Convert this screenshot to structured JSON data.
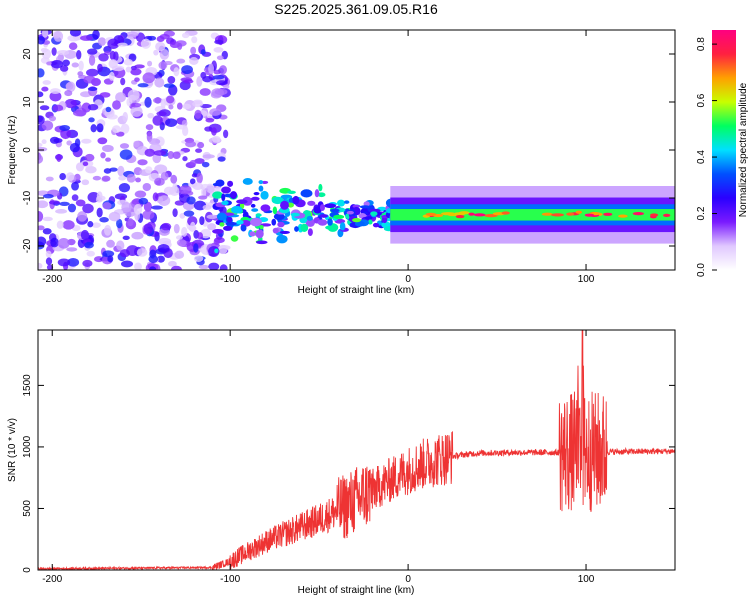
{
  "figure_title": "S225.2025.361.09.05.R16",
  "chart_data": [
    {
      "type": "heatmap",
      "title": "S225.2025.361.09.05.R16",
      "xlabel": "Height of straight line (km)",
      "ylabel": "Frequency (Hz)",
      "xlim": [
        -208,
        150
      ],
      "ylim": [
        -25,
        25
      ],
      "xticks": [
        -200,
        -100,
        0,
        100
      ],
      "yticks": [
        -20,
        -10,
        0,
        10,
        20
      ],
      "colorbar": {
        "label": "Normalized spectral amplitude",
        "range": [
          0,
          0.85
        ],
        "ticks": [
          0.0,
          0.2,
          0.4,
          0.6,
          0.8
        ],
        "colormap": [
          "#ffffff",
          "#e0c8ff",
          "#7a1aff",
          "#2a00ff",
          "#0050ff",
          "#00e0ff",
          "#00ff60",
          "#c8ff00",
          "#ffa000",
          "#ff2040",
          "#ff0080"
        ]
      },
      "features": {
        "noise_region_x": [
          -208,
          -108
        ],
        "tone_frequency_hz": -13.5,
        "tone_start_km": -108,
        "tone_peak_amplitude": 0.85
      }
    },
    {
      "type": "line",
      "xlabel": "Height of straight line (km)",
      "ylabel": "SNR (10 * v/v)",
      "xlim": [
        -208,
        150
      ],
      "ylim": [
        0,
        1950
      ],
      "xticks": [
        -200,
        -100,
        0,
        100
      ],
      "yticks": [
        0,
        500,
        1000,
        1500
      ],
      "series": [
        {
          "name": "SNR",
          "color": "#ee3333",
          "envelope_points": [
            [
              -208,
              10
            ],
            [
              -110,
              20
            ],
            [
              -100,
              70
            ],
            [
              -90,
              150
            ],
            [
              -80,
              230
            ],
            [
              -70,
              290
            ],
            [
              -60,
              350
            ],
            [
              -50,
              410
            ],
            [
              -40,
              480
            ],
            [
              -30,
              560
            ],
            [
              -20,
              650
            ],
            [
              -10,
              730
            ],
            [
              0,
              810
            ],
            [
              10,
              870
            ],
            [
              20,
              910
            ],
            [
              30,
              935
            ],
            [
              40,
              950
            ],
            [
              60,
              955
            ],
            [
              80,
              955
            ],
            [
              90,
              955
            ],
            [
              95,
              960
            ],
            [
              100,
              960
            ],
            [
              105,
              960
            ],
            [
              110,
              960
            ],
            [
              150,
              965
            ]
          ],
          "peak_km": 98,
          "peak_value": 1950
        }
      ]
    }
  ]
}
